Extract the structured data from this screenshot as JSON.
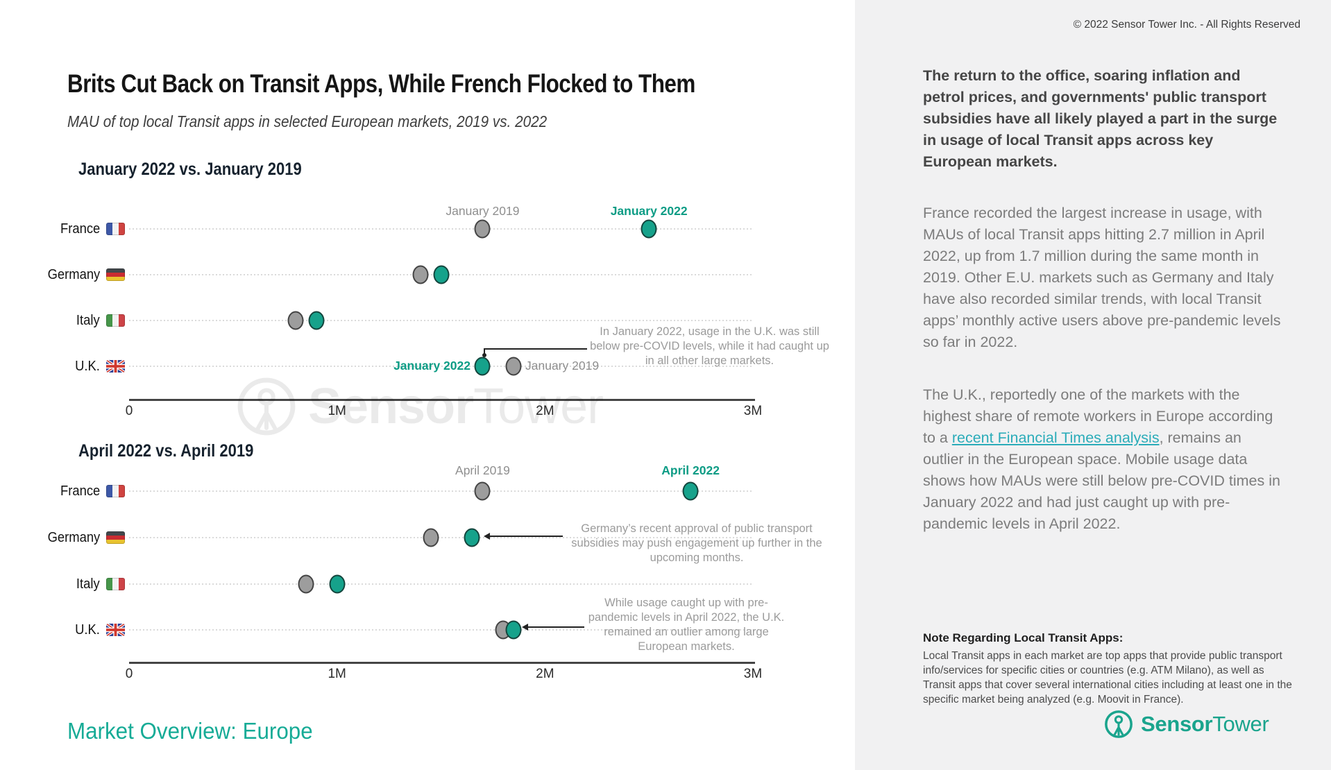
{
  "header": {
    "title": "Brits Cut Back on Transit Apps, While French Flocked to Them",
    "subtitle": "MAU of top local Transit apps in selected European markets, 2019 vs. 2022"
  },
  "countries": [
    {
      "label": "France",
      "flag": "fr"
    },
    {
      "label": "Germany",
      "flag": "de"
    },
    {
      "label": "Italy",
      "flag": "it"
    },
    {
      "label": "U.K.",
      "flag": "uk"
    }
  ],
  "chart_data": [
    {
      "type": "scatter",
      "title": "January 2022 vs. January 2019",
      "categories": [
        "France",
        "Germany",
        "Italy",
        "U.K."
      ],
      "series": [
        {
          "name": "January 2019",
          "color": "#9d9d9d",
          "values": [
            1.7,
            1.4,
            0.8,
            1.85
          ]
        },
        {
          "name": "January 2022",
          "color": "#16a28b",
          "values": [
            2.5,
            1.5,
            0.9,
            1.7
          ]
        }
      ],
      "xlim": [
        0,
        3
      ],
      "x_ticks": [
        "0",
        "1M",
        "2M",
        "3M"
      ],
      "unit": "MAU, millions",
      "annotation": "In January 2022, usage in the U.K. was still below pre-COVID levels, while it had caught up in all other large markets."
    },
    {
      "type": "scatter",
      "title": "April 2022 vs. April 2019",
      "categories": [
        "France",
        "Germany",
        "Italy",
        "U.K."
      ],
      "series": [
        {
          "name": "April 2019",
          "color": "#9d9d9d",
          "values": [
            1.7,
            1.45,
            0.85,
            1.8
          ]
        },
        {
          "name": "April 2022",
          "color": "#16a28b",
          "values": [
            2.7,
            1.65,
            1.0,
            1.85
          ]
        }
      ],
      "xlim": [
        0,
        3
      ],
      "x_ticks": [
        "0",
        "1M",
        "2M",
        "3M"
      ],
      "unit": "MAU, millions",
      "annotations": {
        "germany": "Germany’s recent approval of public transport subsidies may push engagement up further in the upcoming months.",
        "uk": "While usage caught up with pre-pandemic levels in April 2022, the U.K. remained an outlier among large European markets."
      }
    }
  ],
  "watermark": {
    "brand_bold": "Sensor",
    "brand_light": "Tower"
  },
  "footer": {
    "tagline": "Market Overview: Europe"
  },
  "panel": {
    "copyright": "© 2022 Sensor Tower Inc. - All Rights Reserved",
    "lead_paragraph": "The return to the office, soaring inflation and petrol prices, and governments' public transport subsidies have all likely played a part in the surge in usage of local Transit apps across key European markets.",
    "paragraph_2": "France recorded the largest increase in usage, with MAUs of local Transit apps hitting 2.7 million in April 2022, up from 1.7 million during the same month in 2019. Other E.U. markets such as Germany and Italy have also recorded similar trends, with local Transit apps’ monthly active users above pre-pandemic levels so far in 2022.",
    "paragraph_3_before_link": "The U.K., reportedly one of the markets with the highest share of remote workers in Europe according to a ",
    "paragraph_3_link": "recent Financial Times analysis",
    "paragraph_3_after_link": ", remains an outlier in the European space. Mobile usage data shows how MAUs were still below pre-COVID times in January 2022 and had just caught up with pre-pandemic levels in April 2022.",
    "note_heading": "Note Regarding Local Transit Apps:",
    "note_body": "Local Transit apps in each market are top apps that provide public transport info/services for specific cities or countries (e.g. ATM Milano), as well as Transit apps that cover several international cities including at least one in the specific market being analyzed (e.g. Moovit in France).",
    "logo_bold": "Sensor",
    "logo_light": "Tower"
  },
  "colors": {
    "accent_teal": "#16a28b",
    "dot_2019_gray": "#9d9d9d",
    "link_teal": "#2bacb9",
    "panel_bg": "#f1f1f2"
  }
}
